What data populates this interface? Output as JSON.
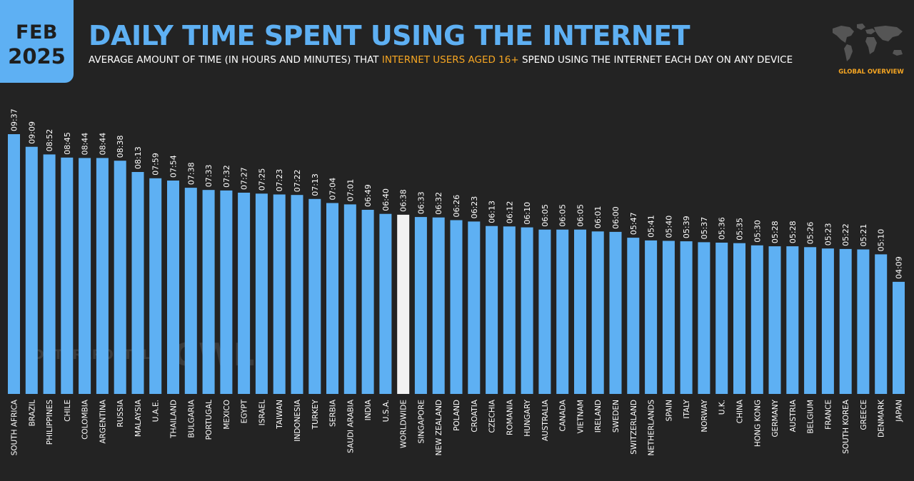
{
  "header": {
    "date_month": "FEB",
    "date_year": "2025",
    "title": "DAILY TIME SPENT USING THE INTERNET",
    "subtitle_before": "AVERAGE AMOUNT OF TIME (IN HOURS AND MINUTES) THAT ",
    "subtitle_highlight": "INTERNET USERS AGED 16+",
    "subtitle_after": " SPEND USING THE INTERNET EACH DAY ON ANY DEVICE",
    "global_overview": "GLOBAL OVERVIEW",
    "map_icon": "world-map-icon"
  },
  "watermarks": {
    "datareportal": "DATAREPORTAL",
    "gwi": "GWI."
  },
  "colors": {
    "background": "#232323",
    "bar": "#5eb0f3",
    "highlight_bar": "#f2f2f2",
    "accent": "#f6a623",
    "text": "#ffffff"
  },
  "chart_data": {
    "type": "bar",
    "unit": "hours:minutes",
    "highlight": "WORLDWIDE",
    "categories": [
      "SOUTH AFRICA",
      "BRAZIL",
      "PHILIPPINES",
      "CHILE",
      "COLOMBIA",
      "ARGENTINA",
      "RUSSIA",
      "MALAYSIA",
      "U.A.E.",
      "THAILAND",
      "BULGARIA",
      "PORTUGAL",
      "MEXICO",
      "EGYPT",
      "ISRAEL",
      "TAIWAN",
      "INDONESIA",
      "TURKEY",
      "SERBIA",
      "SAUDI ARABIA",
      "INDIA",
      "U.S.A.",
      "WORLDWIDE",
      "SINGAPORE",
      "NEW ZEALAND",
      "POLAND",
      "CROATIA",
      "CZECHIA",
      "ROMANIA",
      "HUNGARY",
      "AUSTRALIA",
      "CANADA",
      "VIETNAM",
      "IRELAND",
      "SWEDEN",
      "SWITZERLAND",
      "NETHERLANDS",
      "SPAIN",
      "ITALY",
      "NORWAY",
      "U.K.",
      "CHINA",
      "HONG KONG",
      "GERMANY",
      "AUSTRIA",
      "BELGIUM",
      "FRANCE",
      "SOUTH KOREA",
      "GREECE",
      "DENMARK",
      "JAPAN"
    ],
    "values": [
      "09:37",
      "09:09",
      "08:52",
      "08:45",
      "08:44",
      "08:44",
      "08:38",
      "08:13",
      "07:59",
      "07:54",
      "07:38",
      "07:33",
      "07:32",
      "07:27",
      "07:25",
      "07:23",
      "07:22",
      "07:13",
      "07:04",
      "07:01",
      "06:49",
      "06:40",
      "06:38",
      "06:33",
      "06:32",
      "06:26",
      "06:23",
      "06:13",
      "06:12",
      "06:10",
      "06:05",
      "06:05",
      "06:05",
      "06:01",
      "06:00",
      "05:47",
      "05:41",
      "05:40",
      "05:39",
      "05:37",
      "05:36",
      "05:35",
      "05:30",
      "05:28",
      "05:28",
      "05:26",
      "05:23",
      "05:22",
      "05:21",
      "05:10",
      "04:09"
    ],
    "ylim": [
      0,
      600
    ]
  }
}
